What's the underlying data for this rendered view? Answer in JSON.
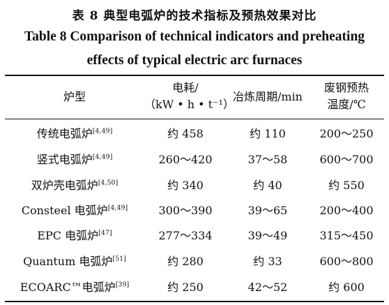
{
  "title_cn": "表 8   典型电弧炉的技术指标及预热效果对比",
  "title_en_line1": "Table 8   Comparison of technical indicators and preheating",
  "title_en_line2": "effects of typical electric arc furnaces",
  "headers": {
    "col0": "炉型",
    "col1_line1": "电耗/",
    "col1_line2": "（kW • h • t⁻¹）",
    "col2": "冶炼周期/min",
    "col3_line1": "废钢预热",
    "col3_line2": "温度/℃"
  },
  "rows": [
    {
      "furnace": "传统电弧炉",
      "cite": "[4,49]",
      "power": "约 458",
      "cycle": "约 110",
      "temp": "200～250"
    },
    {
      "furnace": "竖式电弧炉",
      "cite": "[4,49]",
      "power": "260～420",
      "cycle": "37～58",
      "temp": "600～700"
    },
    {
      "furnace": "双炉壳电弧炉",
      "cite": "[4,50]",
      "power": "约 340",
      "cycle": "约 40",
      "temp": "约 550"
    },
    {
      "furnace": "Consteel 电弧炉",
      "cite": "[4,49]",
      "power": "300～390",
      "cycle": "39～65",
      "temp": "200～400"
    },
    {
      "furnace": "EPC 电弧炉",
      "cite": "[47]",
      "power": "277～334",
      "cycle": "39～49",
      "temp": "315～450"
    },
    {
      "furnace": "Quantum 电弧炉",
      "cite": "[51]",
      "power": "约 280",
      "cycle": "约 33",
      "temp": "600～800"
    },
    {
      "furnace": "ECOARC™电弧炉",
      "cite": "[39]",
      "power": "约 250",
      "cycle": "42～52",
      "temp": "约 600"
    }
  ]
}
